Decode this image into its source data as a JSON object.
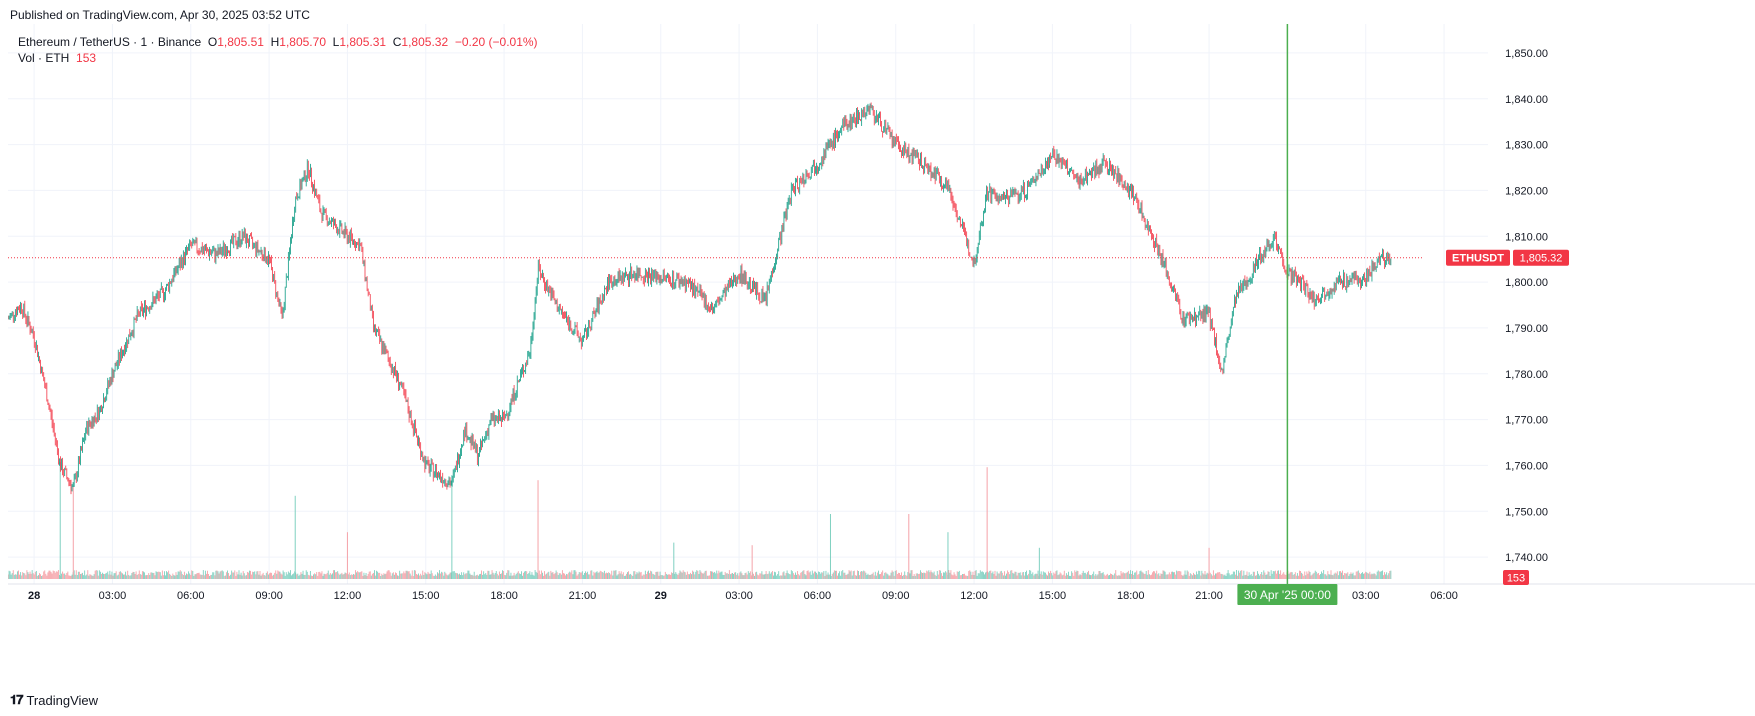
{
  "header": {
    "published": "Published on TradingView.com, Apr 30, 2025 03:52 UTC"
  },
  "legend": {
    "symbol": "Ethereum / TetherUS · 1 · Binance",
    "o_label": "O",
    "o": "1,805.51",
    "h_label": "H",
    "h": "1,805.70",
    "l_label": "L",
    "l": "1,805.31",
    "c_label": "C",
    "c": "1,805.32",
    "change": "−0.20 (−0.01%)",
    "vol_label": "Vol · ETH",
    "vol_value": "153"
  },
  "colors": {
    "up": "#089981",
    "down": "#f23645",
    "vline": "#4caf50",
    "grid": "#f0f3fa"
  },
  "footer": {
    "brand": "TradingView",
    "logo_icon": "tradingview-logo-icon"
  },
  "chart_data": {
    "type": "candlestick",
    "symbol": "ETHUSDT",
    "interval": "1",
    "ylim": [
      1735,
      1855
    ],
    "y_ticks": [
      "1,850.00",
      "1,840.00",
      "1,830.00",
      "1,820.00",
      "1,810.00",
      "1,800.00",
      "1,790.00",
      "1,780.00",
      "1,770.00",
      "1,760.00",
      "1,750.00",
      "1,740.00"
    ],
    "y_tick_values": [
      1850,
      1840,
      1830,
      1820,
      1810,
      1800,
      1790,
      1780,
      1770,
      1760,
      1750,
      1740
    ],
    "x_ticks": [
      "28",
      "03:00",
      "06:00",
      "09:00",
      "12:00",
      "15:00",
      "18:00",
      "21:00",
      "29",
      "03:00",
      "06:00",
      "09:00",
      "12:00",
      "15:00",
      "18:00",
      "21:00",
      "03:00",
      "06:00"
    ],
    "x_tick_hours": [
      0,
      3,
      6,
      9,
      12,
      15,
      18,
      21,
      24,
      27,
      30,
      33,
      36,
      39,
      42,
      45,
      51,
      54
    ],
    "x_range_hours": [
      -1,
      55.3
    ],
    "last_price": 1805.32,
    "last_price_label": "1,805.32",
    "last_price_symbol": "ETHUSDT",
    "volume_label": "153",
    "cursor_label": "30 Apr '25   00:00",
    "cursor_hour": 48,
    "price_path": {
      "hours": [
        -1,
        -0.5,
        0,
        0.5,
        1,
        1.5,
        2,
        2.5,
        3,
        4,
        5,
        6,
        7,
        8,
        9,
        9.5,
        10,
        10.5,
        11,
        12,
        12.5,
        13,
        14,
        15,
        16,
        16.5,
        17,
        17.5,
        18,
        19,
        19.3,
        20,
        21,
        22,
        23,
        24,
        25,
        26,
        27,
        28,
        29,
        30,
        31,
        32,
        33,
        34,
        35,
        36,
        36.5,
        37,
        38,
        39,
        40,
        41,
        42,
        43,
        44,
        45,
        45.5,
        46,
        47,
        47.5,
        48,
        48.5,
        49,
        50,
        51,
        51.5,
        52
      ],
      "prices": [
        1792,
        1795,
        1788,
        1775,
        1760,
        1755,
        1768,
        1772,
        1780,
        1793,
        1798,
        1808,
        1806,
        1810,
        1805,
        1792,
        1818,
        1825,
        1815,
        1810,
        1808,
        1790,
        1778,
        1760,
        1756,
        1768,
        1762,
        1770,
        1770,
        1785,
        1803,
        1795,
        1787,
        1800,
        1802,
        1801,
        1800,
        1794,
        1802,
        1796,
        1820,
        1826,
        1834,
        1838,
        1830,
        1826,
        1821,
        1804,
        1820,
        1818,
        1820,
        1828,
        1822,
        1826,
        1820,
        1808,
        1792,
        1793,
        1780,
        1796,
        1806,
        1810,
        1802,
        1800,
        1796,
        1800,
        1801,
        1805,
        1805.3
      ]
    },
    "volume_spikes_hours": [
      1,
      1.5,
      10,
      12,
      16,
      19.3,
      24.5,
      27.5,
      30.5,
      33.5,
      35,
      36.5,
      38.5,
      45
    ],
    "volume_spikes_heights": [
      0.45,
      0.36,
      0.32,
      0.18,
      0.4,
      0.38,
      0.14,
      0.13,
      0.25,
      0.25,
      0.18,
      0.43,
      0.12,
      0.12
    ]
  }
}
